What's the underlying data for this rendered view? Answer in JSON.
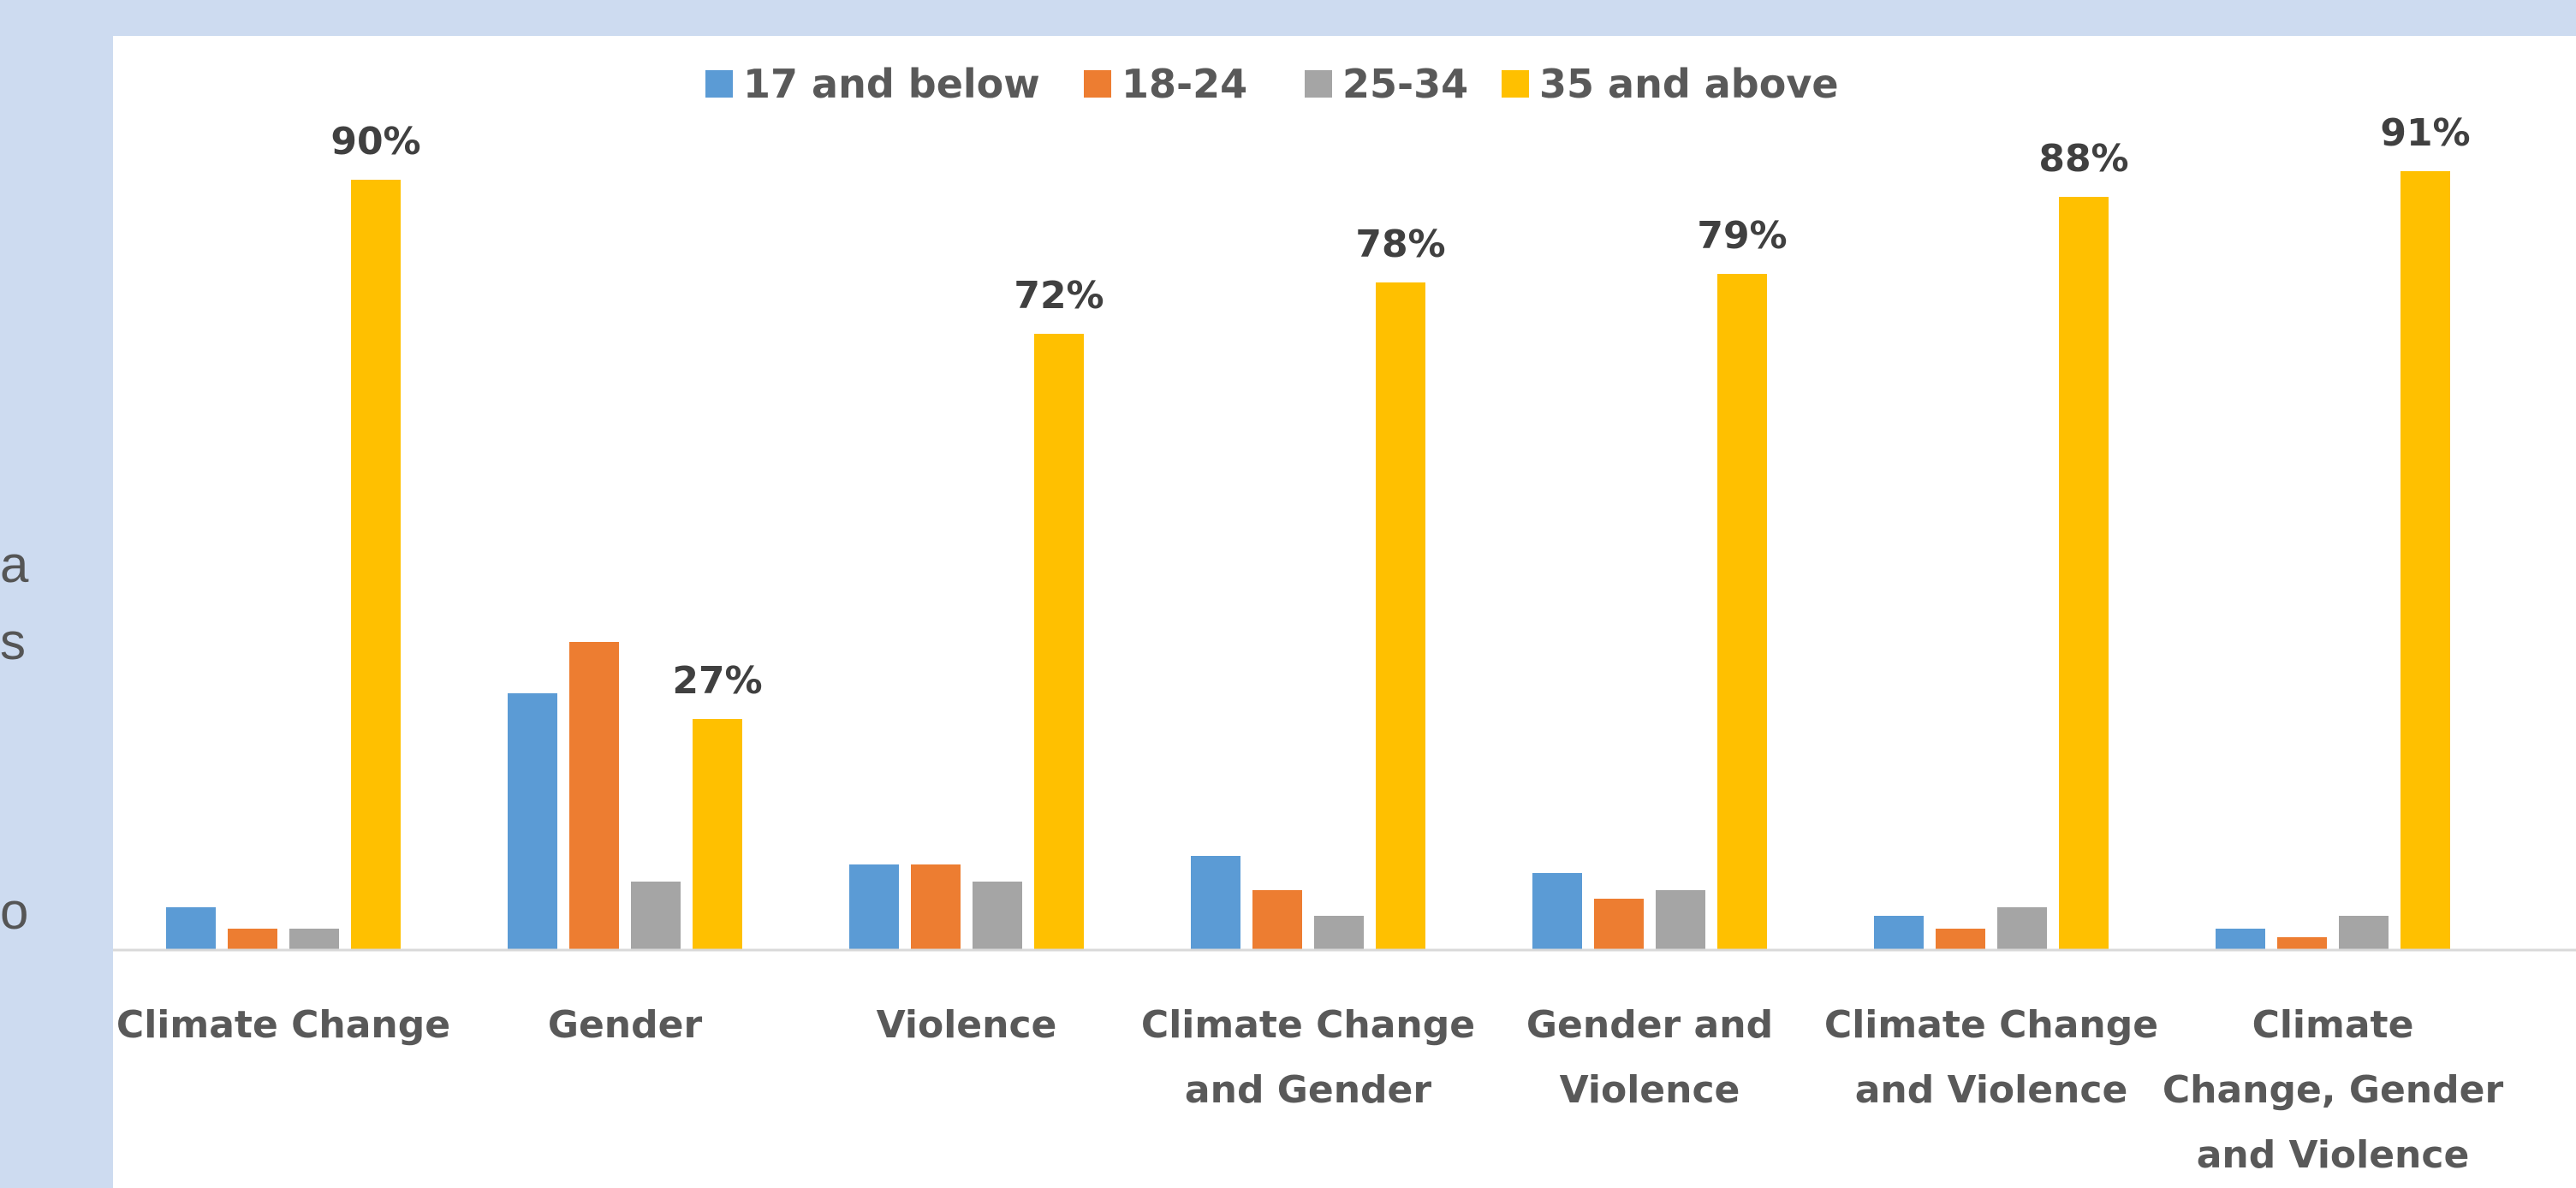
{
  "side_text_fragments": [
    "a",
    "s",
    "o"
  ],
  "chart_data": {
    "type": "bar",
    "title": "",
    "xlabel": "",
    "ylabel": "",
    "ylim": [
      0,
      100
    ],
    "grid": false,
    "legend_position": "top",
    "categories": [
      "Climate Change",
      "Gender",
      "Violence",
      "Climate Change and Gender",
      "Gender and Violence",
      "Climate Change and Violence",
      "Climate Change, Gender and Violence"
    ],
    "category_label_lines": [
      [
        "Climate Change"
      ],
      [
        "Gender"
      ],
      [
        "Violence"
      ],
      [
        "Climate Change",
        "and Gender"
      ],
      [
        "Gender and",
        "Violence"
      ],
      [
        "Climate Change",
        "and Violence"
      ],
      [
        "Climate",
        "Change, Gender",
        "and Violence"
      ]
    ],
    "series": [
      {
        "name": "17 and below",
        "color": "#5b9bd5",
        "values": [
          5,
          30,
          10,
          11,
          9,
          4,
          2.5
        ]
      },
      {
        "name": "18-24",
        "color": "#ed7d31",
        "values": [
          2.5,
          36,
          10,
          7,
          6,
          2.5,
          1.5
        ]
      },
      {
        "name": "25-34",
        "color": "#a5a5a5",
        "values": [
          2.5,
          8,
          8,
          4,
          7,
          5,
          4
        ]
      },
      {
        "name": "35 and above",
        "color": "#ffc000",
        "values": [
          90,
          27,
          72,
          78,
          79,
          88,
          91
        ]
      }
    ],
    "data_labels": {
      "series": "35 and above",
      "texts": [
        "90%",
        "27%",
        "72%",
        "78%",
        "79%",
        "88%",
        "91%"
      ]
    }
  }
}
